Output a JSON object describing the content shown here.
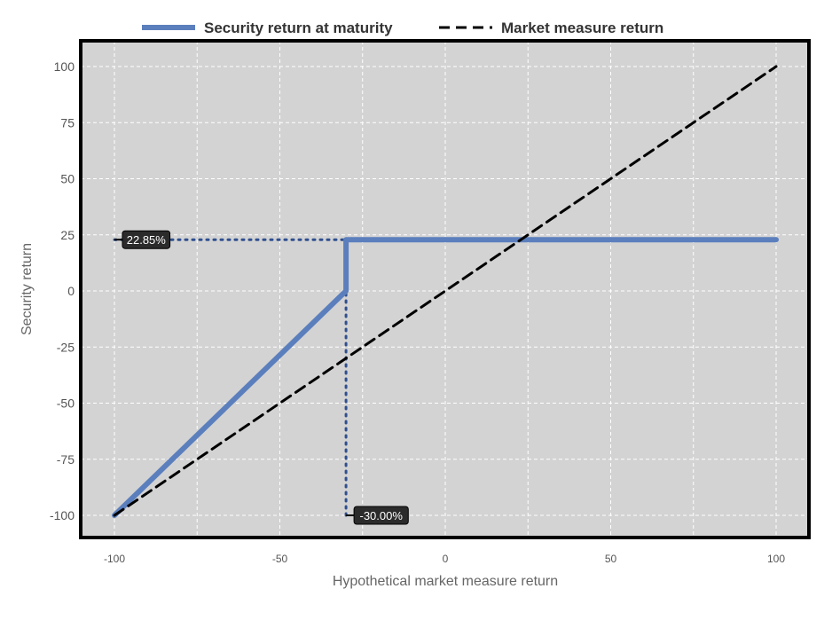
{
  "chart_data": {
    "type": "line",
    "xlabel": "Hypothetical market measure return",
    "ylabel": "Security return",
    "xlim": [
      -110,
      110
    ],
    "ylim": [
      -110,
      110
    ],
    "x_ticks": [
      -100,
      -50,
      0,
      50,
      100
    ],
    "y_ticks": [
      100,
      75,
      50,
      25,
      0,
      -25,
      -50,
      -75,
      -100
    ],
    "grid": true,
    "legend_position": "top",
    "background": "#d3d3d3",
    "series": [
      {
        "name": "Security return at maturity",
        "color": "#5b7fbd",
        "style": "solid",
        "points": [
          [
            -100,
            -100
          ],
          [
            -30,
            0
          ],
          [
            -30,
            22.85
          ],
          [
            100,
            22.85
          ]
        ]
      },
      {
        "name": "Market measure return",
        "color": "#000000",
        "style": "dashed",
        "points": [
          [
            -100,
            -100
          ],
          [
            100,
            100
          ]
        ]
      }
    ],
    "annotations": [
      {
        "label": "22.85%",
        "axis": "y",
        "value": 22.85,
        "from_x": -100,
        "to_x": -30
      },
      {
        "label": "-30.00%",
        "axis": "x",
        "value": -30,
        "from_y": -100,
        "to_y": 22.85
      }
    ]
  }
}
